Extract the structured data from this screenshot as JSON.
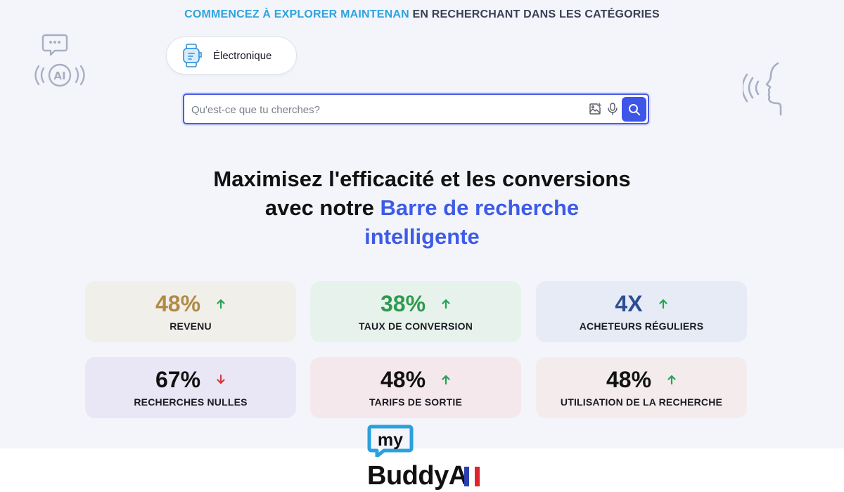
{
  "tagline": {
    "highlight": "COMMENCEZ À EXPLORER MAINTENAN",
    "rest": " EN RECHERCHANT DANS LES CATÉGORIES"
  },
  "decorations": {
    "left_icon": "ai-voice-chat-icon",
    "left_badge": "AI",
    "right_icon": "speaking-head-icon"
  },
  "category": {
    "label": "Électronique",
    "icon": "smartwatch-icon"
  },
  "search": {
    "placeholder": "Qu'est-ce que tu cherches?",
    "value": "",
    "image_search_icon": "image-search-icon",
    "mic_icon": "microphone-icon",
    "button_icon": "search-icon"
  },
  "headline": {
    "line1": "Maximisez l'efficacité et les conversions",
    "line2_plain": "avec notre ",
    "line2_blue": "Barre de recherche",
    "line3_blue": "intelligente"
  },
  "stats": [
    {
      "value": "48%",
      "label": "REVENU",
      "trend": "up",
      "value_color": "#b08a48"
    },
    {
      "value": "38%",
      "label": "TAUX DE CONVERSION",
      "trend": "up",
      "value_color": "#2e9a4e"
    },
    {
      "value": "4X",
      "label": "ACHETEURS RÉGULIERS",
      "trend": "up",
      "value_color": "#2d4e94"
    },
    {
      "value": "67%",
      "label": "RECHERCHES NULLES",
      "trend": "down",
      "value_color": "#111111"
    },
    {
      "value": "48%",
      "label": "TARIFS DE SORTIE",
      "trend": "up",
      "value_color": "#111111"
    },
    {
      "value": "48%",
      "label": "UTILISATION DE LA RECHERCHE",
      "trend": "up",
      "value_color": "#111111"
    }
  ],
  "colors": {
    "accent": "#3e5be7",
    "up_arrow": "#22a553",
    "down_arrow": "#d33b3b",
    "tagline_highlight": "#2fa3dd"
  },
  "logo": {
    "my": "my",
    "name": "BuddyA",
    "flag": "french-flag-icon"
  }
}
